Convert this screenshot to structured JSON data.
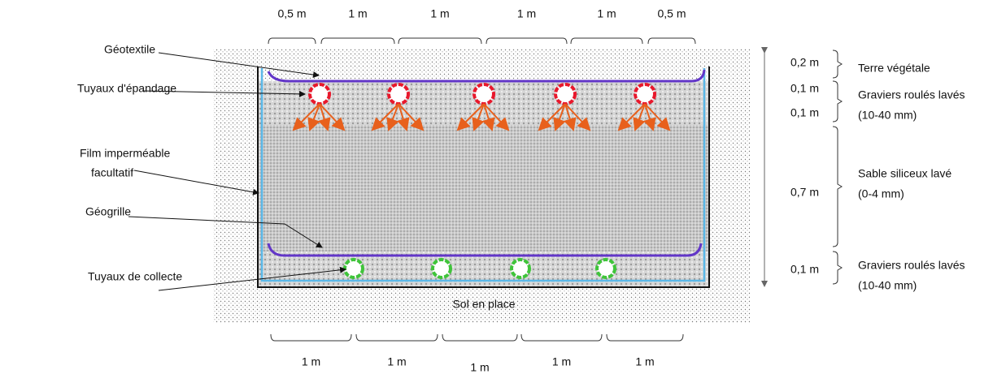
{
  "top_dimensions": [
    "0,5 m",
    "1 m",
    "1 m",
    "1 m",
    "1 m",
    "0,5 m"
  ],
  "labels": [
    {
      "lines": [
        "Géotextile"
      ]
    },
    {
      "lines": [
        "Tuyaux d'épandage"
      ]
    },
    {
      "lines": [
        "Film imperméable",
        "facultatif"
      ]
    },
    {
      "lines": [
        "Géogrille"
      ]
    },
    {
      "lines": [
        "Tuyaux de collecte"
      ]
    }
  ],
  "layer_thickness": [
    "0,2 m",
    "0,1 m",
    "0,1 m",
    "0,7 m",
    "0,1 m"
  ],
  "layers": [
    {
      "lines": [
        "Terre végétale"
      ]
    },
    {
      "lines": [
        "Graviers roulés lavés",
        "(10-40 mm)"
      ]
    },
    {
      "lines": [
        "Sable siliceux lavé",
        "(0-4 mm)"
      ]
    },
    {
      "lines": [
        "Graviers roulés lavés",
        "(10-40 mm)"
      ]
    }
  ],
  "ground": "Sol en place",
  "bottom_dimensions": [
    "1 m",
    "1 m",
    "1 m",
    "1 m",
    "1 m"
  ]
}
